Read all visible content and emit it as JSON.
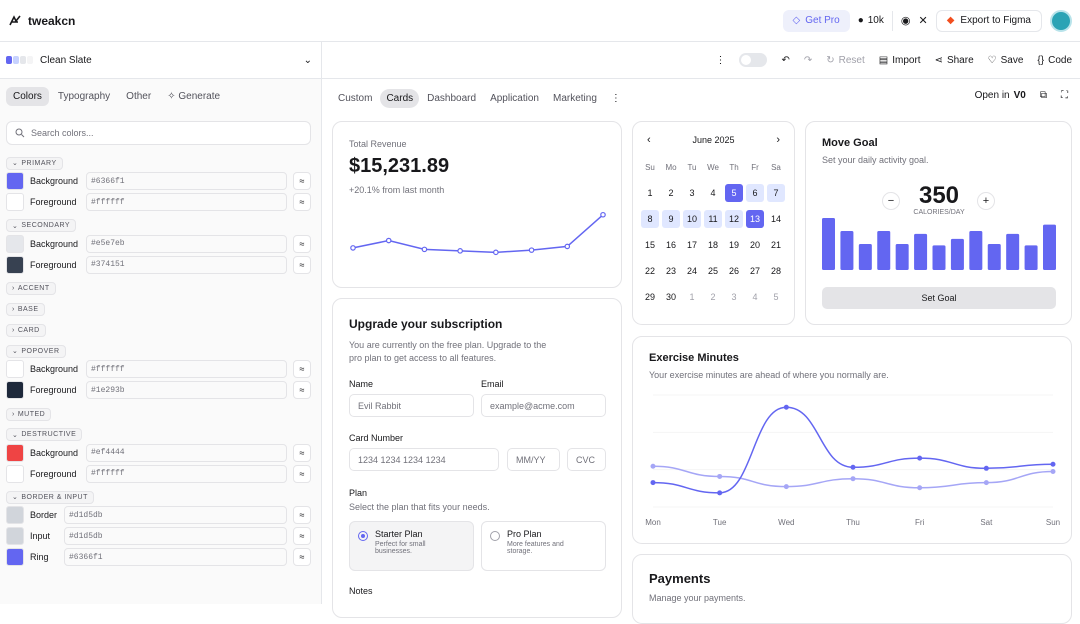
{
  "app": {
    "name": "tweakcn",
    "get_pro": "Get Pro",
    "github_stars": "10k",
    "export": "Export to Figma"
  },
  "theme": {
    "name": "Clean Slate",
    "dots": [
      "#6366f1",
      "#c7d2fe",
      "#e5e7eb",
      "#f4f4f5"
    ]
  },
  "toolbar": {
    "reset": "Reset",
    "import": "Import",
    "share": "Share",
    "save": "Save",
    "code": "Code"
  },
  "sidebar": {
    "tabs": [
      "Colors",
      "Typography",
      "Other",
      "Generate"
    ],
    "search_placeholder": "Search colors...",
    "groups": [
      {
        "name": "PRIMARY",
        "open": true,
        "rows": [
          {
            "label": "Background",
            "value": "#6366f1",
            "color": "#6366f1"
          },
          {
            "label": "Foreground",
            "value": "#ffffff",
            "color": "#ffffff"
          }
        ]
      },
      {
        "name": "SECONDARY",
        "open": true,
        "rows": [
          {
            "label": "Background",
            "value": "#e5e7eb",
            "color": "#e5e7eb"
          },
          {
            "label": "Foreground",
            "value": "#374151",
            "color": "#374151"
          }
        ]
      },
      {
        "name": "ACCENT",
        "open": false,
        "rows": []
      },
      {
        "name": "BASE",
        "open": false,
        "rows": []
      },
      {
        "name": "CARD",
        "open": false,
        "rows": []
      },
      {
        "name": "POPOVER",
        "open": true,
        "rows": [
          {
            "label": "Background",
            "value": "#ffffff",
            "color": "#ffffff"
          },
          {
            "label": "Foreground",
            "value": "#1e293b",
            "color": "#1e293b"
          }
        ]
      },
      {
        "name": "MUTED",
        "open": false,
        "rows": []
      },
      {
        "name": "DESTRUCTIVE",
        "open": true,
        "rows": [
          {
            "label": "Background",
            "value": "#ef4444",
            "color": "#ef4444"
          },
          {
            "label": "Foreground",
            "value": "#ffffff",
            "color": "#ffffff"
          }
        ]
      },
      {
        "name": "BORDER & INPUT",
        "open": true,
        "rows": [
          {
            "label": "Border",
            "value": "#d1d5db",
            "color": "#d1d5db"
          },
          {
            "label": "Input",
            "value": "#d1d5db",
            "color": "#d1d5db"
          },
          {
            "label": "Ring",
            "value": "#6366f1",
            "color": "#6366f1"
          }
        ]
      }
    ]
  },
  "preview_tabs": [
    "Custom",
    "Cards",
    "Dashboard",
    "Application",
    "Marketing"
  ],
  "open_in": "Open in",
  "revenue": {
    "label": "Total Revenue",
    "value": "$15,231.89",
    "delta": "+20.1% from last month",
    "points": [
      30,
      40,
      28,
      26,
      24,
      27,
      32,
      75
    ]
  },
  "calendar": {
    "month": "June 2025",
    "weekdays": [
      "Su",
      "Mo",
      "Tu",
      "We",
      "Th",
      "Fr",
      "Sa"
    ],
    "weeks": [
      [
        "1",
        "2",
        "3",
        "4",
        "5",
        "6",
        "7"
      ],
      [
        "8",
        "9",
        "10",
        "11",
        "12",
        "13",
        "14"
      ],
      [
        "15",
        "16",
        "17",
        "18",
        "19",
        "20",
        "21"
      ],
      [
        "22",
        "23",
        "24",
        "25",
        "26",
        "27",
        "28"
      ],
      [
        "29",
        "30",
        "1",
        "2",
        "3",
        "4",
        "5"
      ]
    ]
  },
  "goal": {
    "title": "Move Goal",
    "subtitle": "Set your daily activity goal.",
    "value": "350",
    "unit": "CALORIES/DAY",
    "button": "Set Goal",
    "bars": [
      400,
      300,
      200,
      300,
      200,
      278,
      189,
      239,
      300,
      200,
      278,
      189,
      349
    ]
  },
  "upgrade": {
    "title": "Upgrade your subscription",
    "desc": "You are currently on the free plan. Upgrade to the pro plan to get access to all features.",
    "name_label": "Name",
    "name_value": "Evil Rabbit",
    "email_label": "Email",
    "email_placeholder": "example@acme.com",
    "card_label": "Card Number",
    "card_placeholder": "1234 1234 1234 1234",
    "mmyy": "MM/YY",
    "cvc": "CVC",
    "plan_label": "Plan",
    "plan_desc": "Select the plan that fits your needs.",
    "plans": [
      {
        "name": "Starter Plan",
        "desc": "Perfect for small businesses."
      },
      {
        "name": "Pro Plan",
        "desc": "More features and storage."
      }
    ],
    "notes_label": "Notes"
  },
  "exercise": {
    "title": "Exercise Minutes",
    "subtitle": "Your exercise minutes are ahead of where you normally are.",
    "chart_data": {
      "type": "line",
      "x": [
        "Mon",
        "Tue",
        "Wed",
        "Thu",
        "Fri",
        "Sat",
        "Sun"
      ],
      "series": [
        {
          "values": [
            240,
            139,
            980,
            390,
            480,
            380,
            420
          ],
          "color": "#6366f1"
        },
        {
          "values": [
            400,
            300,
            200,
            278,
            189,
            239,
            349
          ],
          "color": "#a5a6f6"
        }
      ],
      "ylim": [
        0,
        1100
      ]
    }
  },
  "payments": {
    "title": "Payments",
    "subtitle": "Manage your payments."
  }
}
